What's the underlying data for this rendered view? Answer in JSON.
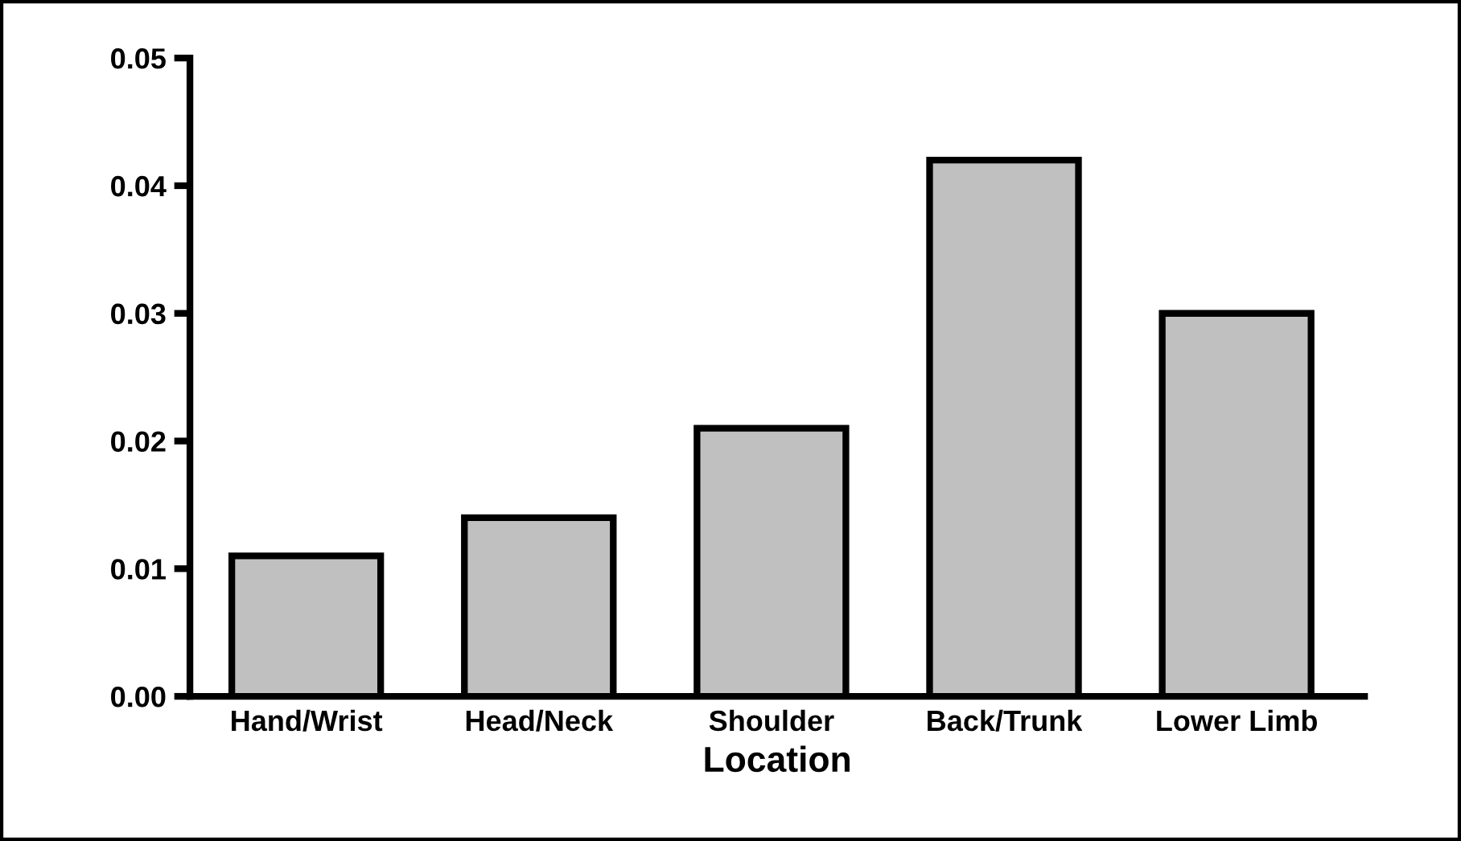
{
  "chart_data": {
    "type": "bar",
    "xlabel": "Location",
    "categories": [
      "Hand/Wrist",
      "Head/Neck",
      "Shoulder",
      "Back/Trunk",
      "Lower Limb"
    ],
    "values": [
      0.011,
      0.014,
      0.021,
      0.042,
      0.03
    ],
    "color": "#c0c0c0",
    "ylim": [
      0,
      0.05
    ],
    "yticks": [
      {
        "value": 0,
        "label": "0.00"
      },
      {
        "value": 0.01,
        "label": "0.01"
      },
      {
        "value": 0.02,
        "label": "0.02"
      },
      {
        "value": 0.03,
        "label": "0.03"
      },
      {
        "value": 0.04,
        "label": "0.04"
      },
      {
        "value": 0.05,
        "label": "0.05"
      }
    ],
    "grid": false
  }
}
